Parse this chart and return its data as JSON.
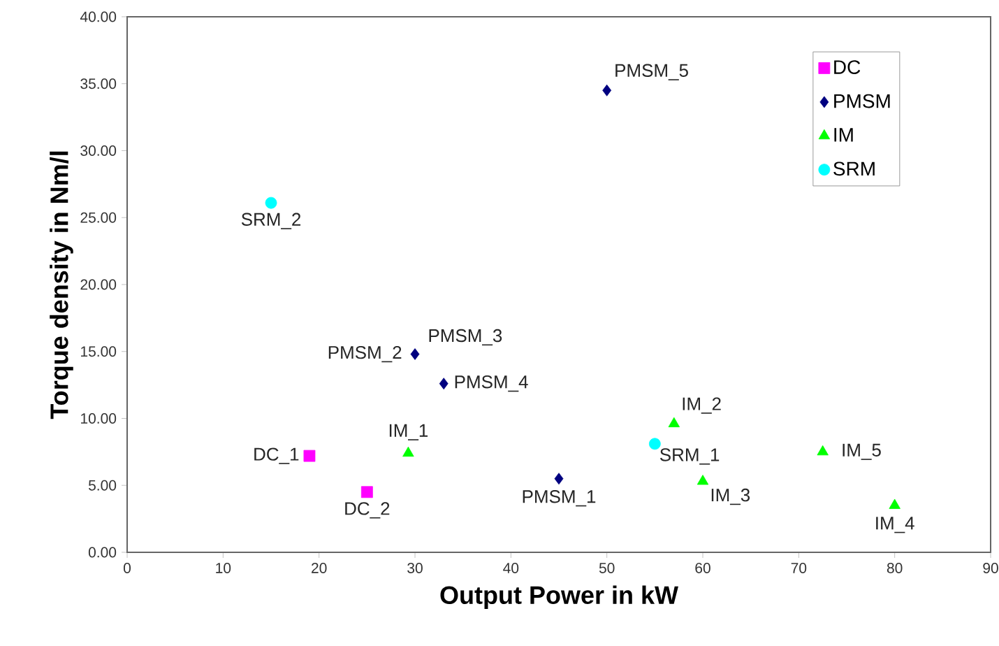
{
  "chart_data": {
    "type": "scatter",
    "xlabel": "Output Power in kW",
    "ylabel": "Torque density in Nm/l",
    "xlim": [
      0,
      90
    ],
    "xticks": [
      0,
      10,
      20,
      30,
      40,
      50,
      60,
      70,
      80,
      90
    ],
    "ylim": [
      0,
      40
    ],
    "yticks": [
      {
        "value": 0,
        "label": "0.00"
      },
      {
        "value": 5,
        "label": "5.00"
      },
      {
        "value": 10,
        "label": "10.00"
      },
      {
        "value": 15,
        "label": "15.00"
      },
      {
        "value": 20,
        "label": "20.00"
      },
      {
        "value": 25,
        "label": "25.00"
      },
      {
        "value": 30,
        "label": "30.00"
      },
      {
        "value": 35,
        "label": "35.00"
      },
      {
        "value": 40,
        "label": "40.00"
      }
    ],
    "grid": false,
    "legend": "top right",
    "series": [
      {
        "name": "DC",
        "color": "#ff00ff",
        "marker": "square",
        "x": [
          19,
          25
        ],
        "values": [
          7.2,
          4.5
        ]
      },
      {
        "name": "PMSM",
        "color": "#000080",
        "marker": "diamond",
        "x": [
          45,
          30,
          33,
          50
        ],
        "values": [
          5.5,
          14.8,
          12.6,
          34.5
        ]
      },
      {
        "name": "IM",
        "color": "#00ff00",
        "marker": "triangle",
        "x": [
          29.3,
          57,
          60,
          80,
          72.5
        ],
        "values": [
          7.4,
          9.6,
          5.3,
          3.5,
          7.5
        ]
      },
      {
        "name": "SRM",
        "color": "#00ffff",
        "marker": "circle",
        "x": [
          55,
          15
        ],
        "values": [
          8.1,
          26.1
        ]
      }
    ],
    "annotations": [
      {
        "text": "DC_1",
        "x": 19,
        "y": 7.2
      },
      {
        "text": "DC_2",
        "x": 25,
        "y": 4.5
      },
      {
        "text": "PMSM_1",
        "x": 45,
        "y": 5.5
      },
      {
        "text": "PMSM_2",
        "x": 30,
        "y": 14.8
      },
      {
        "text": "PMSM_3",
        "x": 30,
        "y": 14.8
      },
      {
        "text": "PMSM_4",
        "x": 33,
        "y": 12.6
      },
      {
        "text": "PMSM_5",
        "x": 50,
        "y": 34.5
      },
      {
        "text": "IM_1",
        "x": 29.3,
        "y": 7.4
      },
      {
        "text": "IM_2",
        "x": 57,
        "y": 9.6
      },
      {
        "text": "IM_3",
        "x": 60,
        "y": 5.3
      },
      {
        "text": "IM_4",
        "x": 80,
        "y": 3.5
      },
      {
        "text": "IM_5",
        "x": 72.5,
        "y": 7.5
      },
      {
        "text": "SRM_1",
        "x": 55,
        "y": 8.1
      },
      {
        "text": "SRM_2",
        "x": 15,
        "y": 26.1
      }
    ]
  }
}
